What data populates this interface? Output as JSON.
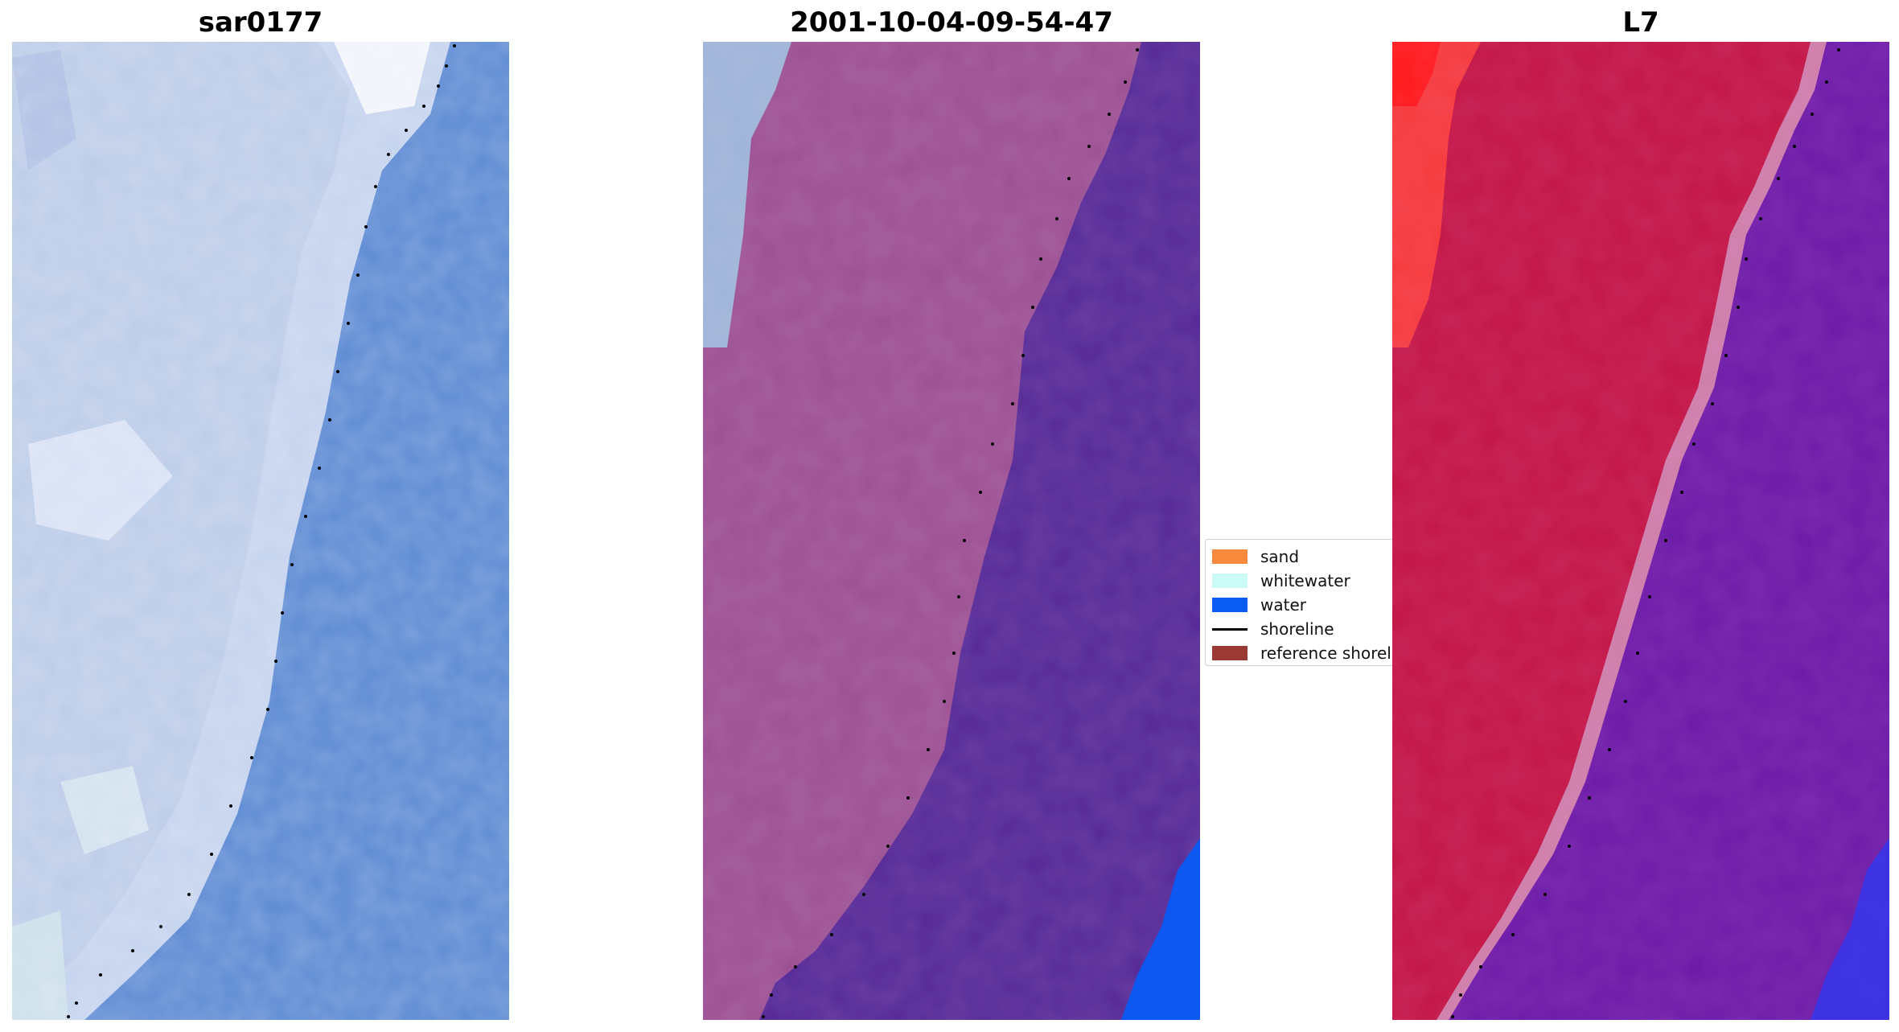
{
  "panels": [
    {
      "title": "sar0177",
      "image": "true-color RGB satellite image (sand, whitewater, ocean)"
    },
    {
      "title": "2001-10-04-09-54-47",
      "image": "classified image overlay (sand / water classes)"
    },
    {
      "title": "L7",
      "image": "false-color index image (red sand, purple water)"
    }
  ],
  "legend": {
    "items": [
      {
        "label": "sand",
        "kind": "patch",
        "color": "#f98a3c"
      },
      {
        "label": "whitewater",
        "kind": "patch",
        "color": "#ccfaf6"
      },
      {
        "label": "water",
        "kind": "patch",
        "color": "#0a5cf5"
      },
      {
        "label": "shoreline",
        "kind": "line",
        "color": "#000000"
      },
      {
        "label": "reference shoreline",
        "kind": "patch",
        "color": "#9b3a33"
      }
    ]
  },
  "colors": {
    "rgb_sand": "#c9d6ef",
    "rgb_water": "#5a88d2",
    "class_sand": "#9a4f90",
    "class_water": "#542896",
    "class_bright_water": "#0c58f0",
    "mndwi_sand": "#c21544",
    "mndwi_water": "#6a1aa6",
    "shoreline_dots": "#000000"
  }
}
